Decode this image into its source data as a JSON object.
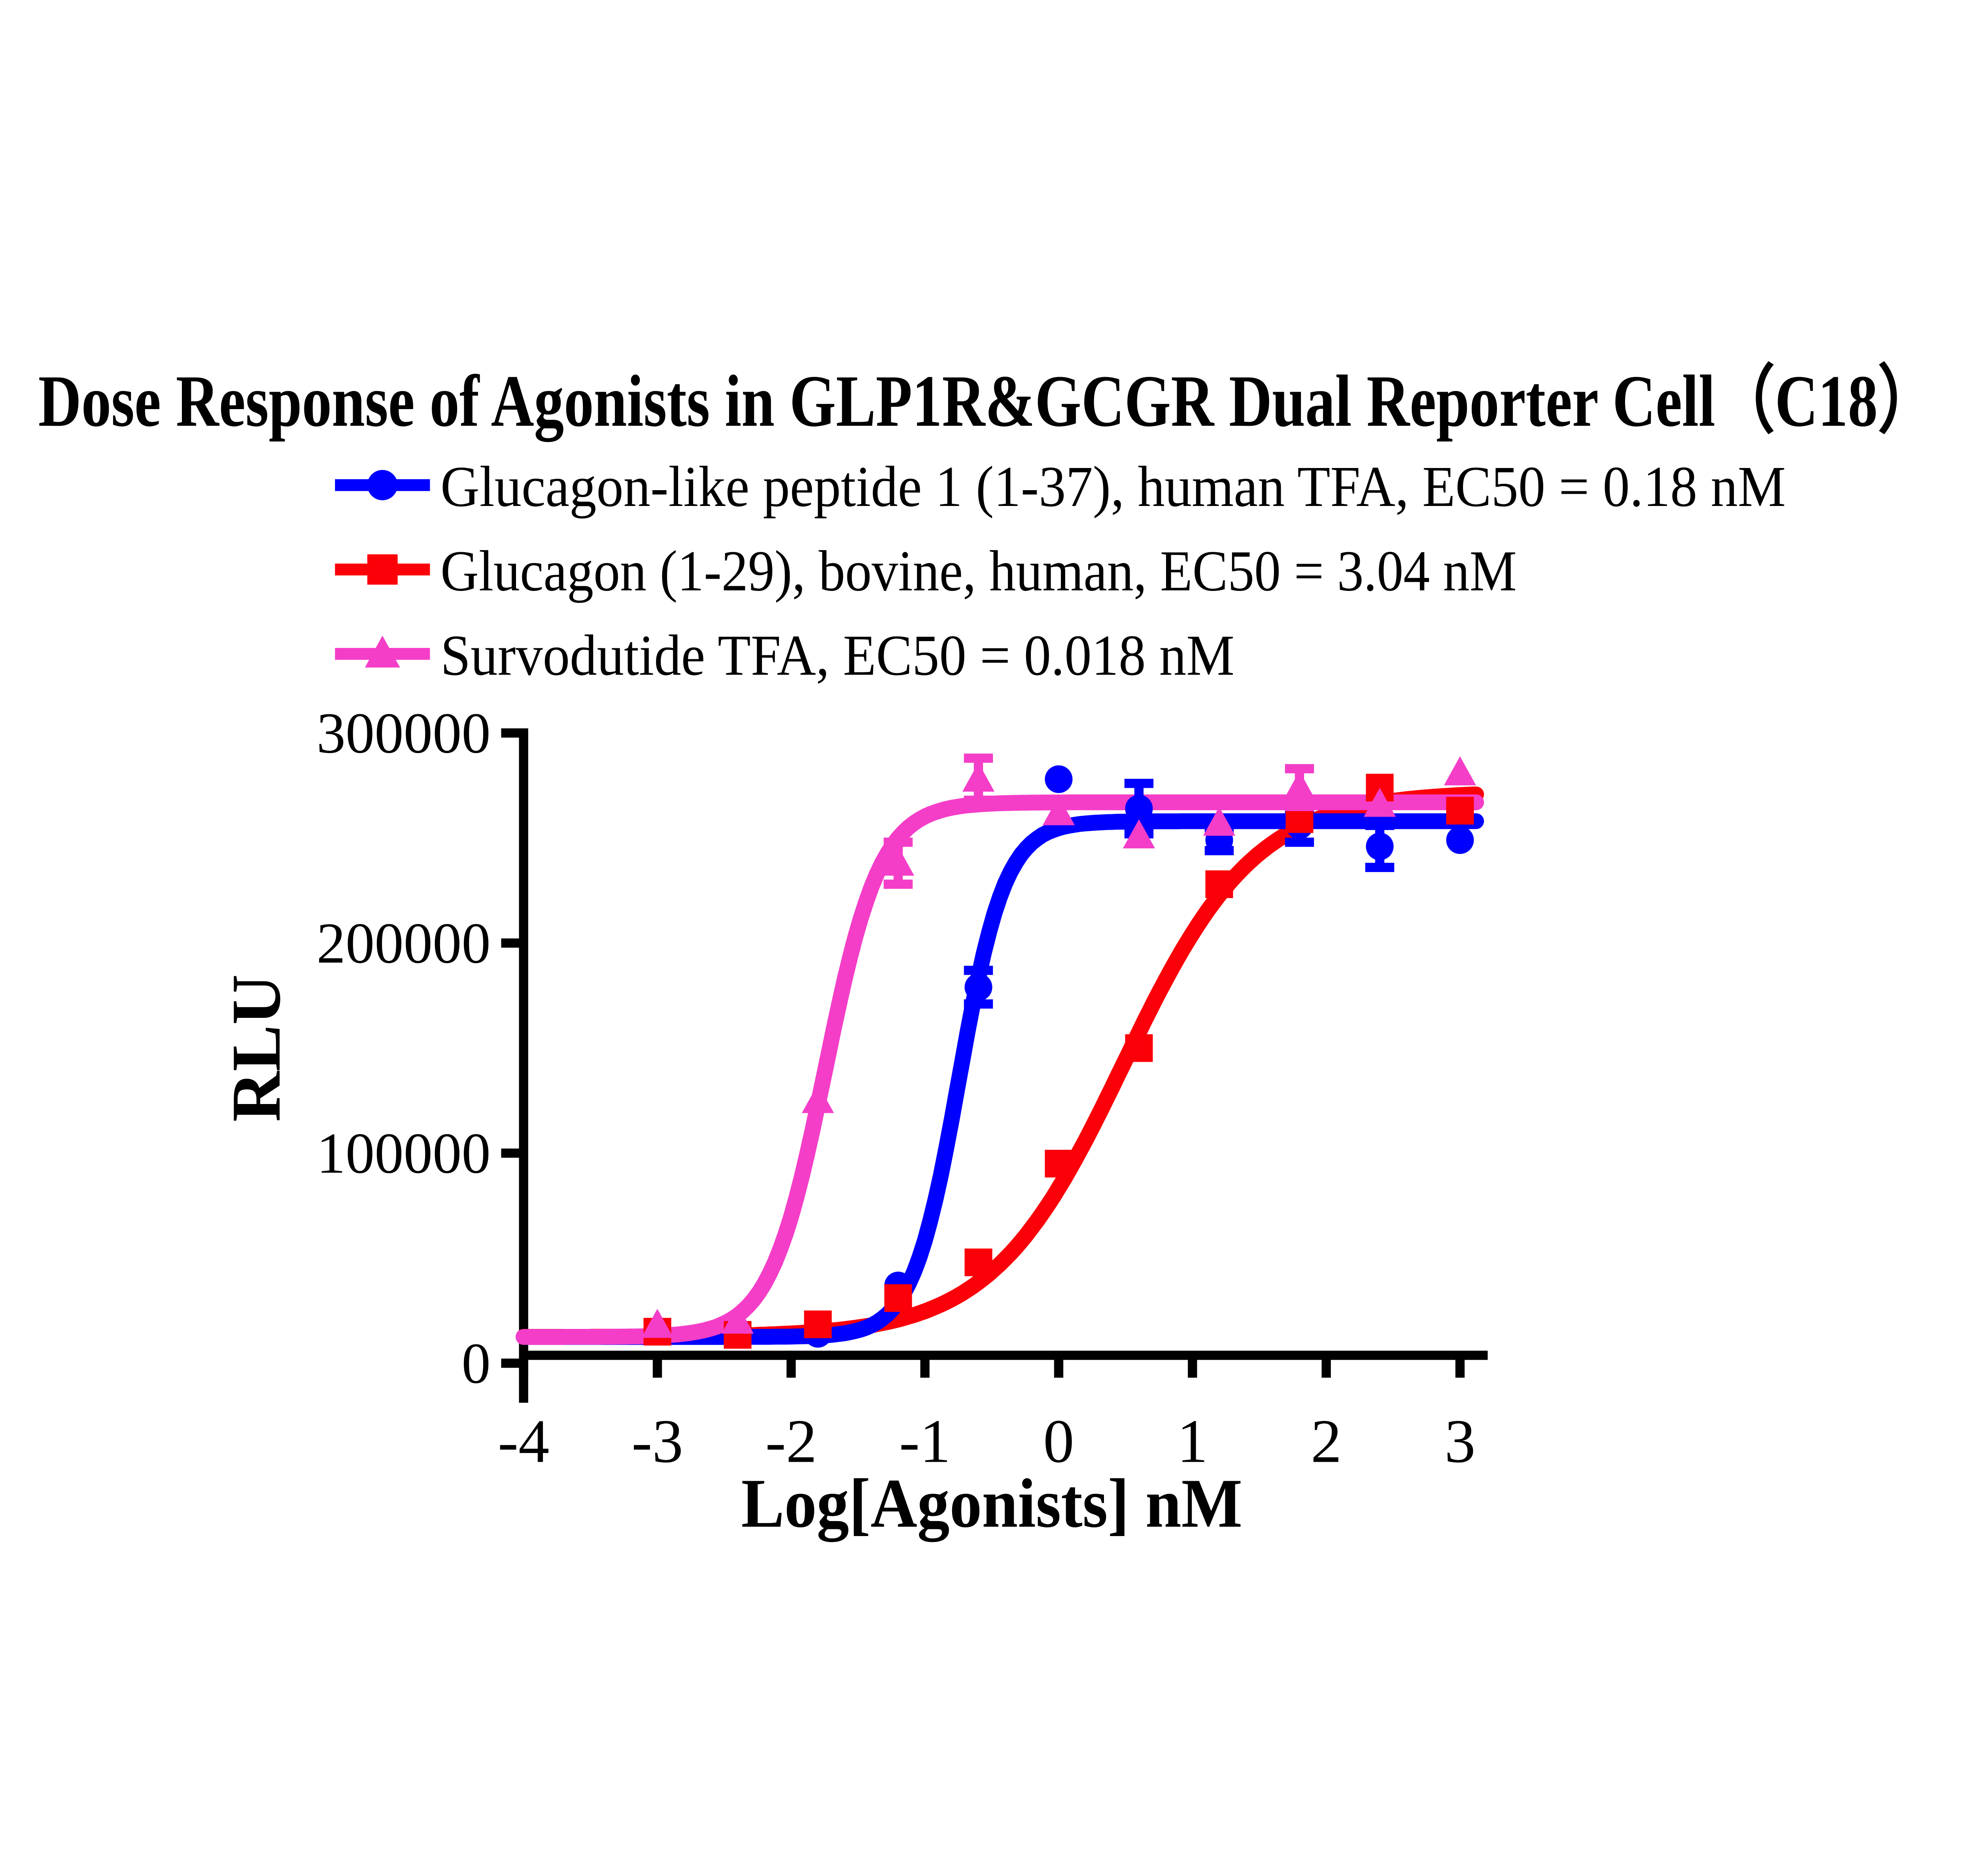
{
  "chart_data": {
    "type": "line",
    "title": "Dose Response of Agonists in GLP1R&GCGR Dual Reporter Cell（C18）",
    "xlabel": "Log[Agonists] nM",
    "ylabel": "RLU",
    "xlim": [
      -4,
      3.2
    ],
    "ylim": [
      0,
      300000
    ],
    "grid": false,
    "legend_position": "top-left",
    "x_ticks": [
      -4,
      -3,
      -2,
      -1,
      0,
      1,
      2,
      3
    ],
    "x_tick_labels": [
      "-4",
      "-3",
      "-2",
      "-1",
      "0",
      "1",
      "2",
      "3"
    ],
    "y_ticks": [
      0,
      100000,
      200000,
      300000
    ],
    "y_tick_labels": [
      "0",
      "100000",
      "200000",
      "300000"
    ],
    "series": [
      {
        "name": "Glucagon-like peptide 1 (1-37), human TFA",
        "legend_label": "Glucagon-like peptide 1 (1-37), human TFA, EC50 = 0.18 nM",
        "ec50": "0.18 nM",
        "color": "#0000FE",
        "marker": "circle",
        "fit": {
          "bottom": 12500,
          "top": 258000,
          "log_ec50": -0.745,
          "hill": 2.5
        },
        "points": [
          {
            "x": -1.8,
            "y": 14000
          },
          {
            "x": -1.2,
            "y": 37000
          },
          {
            "x": -0.6,
            "y": 179000,
            "err": 8000
          },
          {
            "x": 0,
            "y": 278000
          },
          {
            "x": 0.6,
            "y": 264000,
            "err": 12000
          },
          {
            "x": 1.2,
            "y": 249000,
            "err": 5000
          },
          {
            "x": 1.8,
            "y": 256000,
            "err": 8000
          },
          {
            "x": 2.4,
            "y": 246000,
            "err": 10000
          },
          {
            "x": 3,
            "y": 249000
          }
        ]
      },
      {
        "name": "Glucagon (1-29), bovine, human",
        "legend_label": "Glucagon (1-29), bovine, human, EC50 = 3.04 nM",
        "ec50": "3.04 nM",
        "color": "#FB0009",
        "marker": "square",
        "fit": {
          "bottom": 12500,
          "top": 272000,
          "log_ec50": 0.483,
          "hill": 0.88
        },
        "points": [
          {
            "x": -3,
            "y": 15000
          },
          {
            "x": -2.4,
            "y": 13500
          },
          {
            "x": -1.8,
            "y": 18500
          },
          {
            "x": -1.2,
            "y": 31000
          },
          {
            "x": -0.6,
            "y": 48000
          },
          {
            "x": 0,
            "y": 95000
          },
          {
            "x": 0.6,
            "y": 150000
          },
          {
            "x": 1.2,
            "y": 228000
          },
          {
            "x": 1.8,
            "y": 259000
          },
          {
            "x": 2.4,
            "y": 274000
          },
          {
            "x": 3,
            "y": 263000
          }
        ]
      },
      {
        "name": "Survodutide TFA",
        "legend_label": "Survodutide TFA, EC50 = 0.018 nM",
        "ec50": "0.018 nM",
        "color": "#F43EC8",
        "marker": "triangle",
        "fit": {
          "bottom": 12500,
          "top": 267000,
          "log_ec50": -1.745,
          "hill": 2.1
        },
        "points": [
          {
            "x": -3,
            "y": 18000
          },
          {
            "x": -2.4,
            "y": 20000
          },
          {
            "x": -1.8,
            "y": 125000
          },
          {
            "x": -1.2,
            "y": 238000,
            "err": 10000
          },
          {
            "x": -0.6,
            "y": 278000,
            "err": 10000
          },
          {
            "x": 0,
            "y": 262000
          },
          {
            "x": 0.6,
            "y": 251000
          },
          {
            "x": 1.2,
            "y": 257000
          },
          {
            "x": 1.8,
            "y": 274000,
            "err": 9000
          },
          {
            "x": 2.4,
            "y": 266000
          },
          {
            "x": 3,
            "y": 281000
          }
        ]
      }
    ]
  }
}
